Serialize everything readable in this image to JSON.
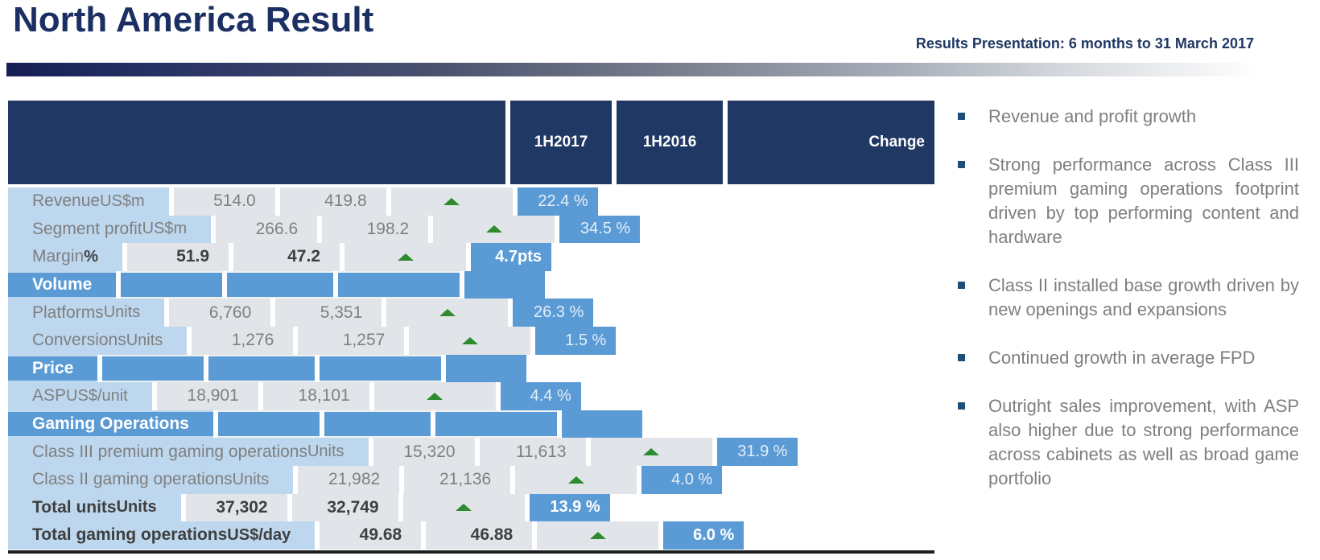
{
  "colors": {
    "navy_header": "#1f3864",
    "section_blue": "#5b9bd5",
    "label_blue": "#bdd7ee",
    "cell_gray": "#e1e5e9",
    "text_gray": "#7f7f7f",
    "text_dark_bold": "#3f3f3f",
    "arrow_green": "#2e8b2e",
    "bullet_square": "#1f4e79",
    "bottom_border": "#1f1f1f"
  },
  "header": {
    "title": "North America Result",
    "subtitle": "Results Presentation: 6 months to 31 March 2017"
  },
  "table": {
    "columns": {
      "c2017": "1H2017",
      "c2016": "1H2016",
      "change": "Change"
    },
    "rows": [
      {
        "type": "data",
        "label": "Revenue",
        "unit": "US$m",
        "v1": "514.0",
        "v2": "419.8",
        "arrow": "up",
        "change": "22.4 %",
        "lb": false,
        "ub": false,
        "vb": false,
        "cb": false
      },
      {
        "type": "data",
        "label": "Segment profit",
        "unit": "US$m",
        "v1": "266.6",
        "v2": "198.2",
        "arrow": "up",
        "change": "34.5 %",
        "lb": false,
        "ub": false,
        "vb": false,
        "cb": false
      },
      {
        "type": "data",
        "label": "Margin",
        "unit": "%",
        "v1": "51.9",
        "v2": "47.2",
        "arrow": "up",
        "change": "4.7pts",
        "lb": false,
        "ub": true,
        "vb": true,
        "cb": true
      },
      {
        "type": "section",
        "label": "Volume"
      },
      {
        "type": "data",
        "label": "Platforms",
        "unit": "Units",
        "v1": "6,760",
        "v2": "5,351",
        "arrow": "up",
        "change": "26.3 %",
        "lb": false,
        "ub": false,
        "vb": false,
        "cb": false
      },
      {
        "type": "data",
        "label": "Conversions",
        "unit": "Units",
        "v1": "1,276",
        "v2": "1,257",
        "arrow": "up",
        "change": "1.5 %",
        "lb": false,
        "ub": false,
        "vb": false,
        "cb": false
      },
      {
        "type": "section",
        "label": "Price"
      },
      {
        "type": "data",
        "label": "ASP",
        "unit": "US$/unit",
        "v1": "18,901",
        "v2": "18,101",
        "arrow": "up",
        "change": "4.4 %",
        "lb": false,
        "ub": false,
        "vb": false,
        "cb": false
      },
      {
        "type": "section",
        "label": "Gaming Operations"
      },
      {
        "type": "data",
        "label": "Class III premium gaming operations",
        "unit": "Units",
        "v1": "15,320",
        "v2": "11,613",
        "arrow": "up",
        "change": "31.9 %",
        "lb": false,
        "ub": false,
        "vb": false,
        "cb": false
      },
      {
        "type": "data",
        "label": "Class II gaming operations",
        "unit": "Units",
        "v1": "21,982",
        "v2": "21,136",
        "arrow": "up",
        "change": "4.0 %",
        "lb": false,
        "ub": false,
        "vb": false,
        "cb": false
      },
      {
        "type": "data",
        "label": "Total units",
        "unit": "Units",
        "v1": "37,302",
        "v2": "32,749",
        "arrow": "up",
        "change": "13.9 %",
        "lb": true,
        "ub": true,
        "vb": true,
        "cb": true
      },
      {
        "type": "data",
        "label": "Total gaming operations",
        "unit": "US$/day",
        "v1": "49.68",
        "v2": "46.88",
        "arrow": "up",
        "change": "6.0 %",
        "lb": true,
        "ub": true,
        "vb": true,
        "cb": true
      }
    ]
  },
  "bullets": [
    "Revenue and profit growth",
    "Strong performance across Class III premium gaming operations footprint driven by top performing content and hardware",
    "Class II installed base growth driven by new openings and expansions",
    "Continued growth in average FPD",
    "Outright sales improvement, with ASP also higher due to strong performance across cabinets as well as broad game portfolio"
  ]
}
